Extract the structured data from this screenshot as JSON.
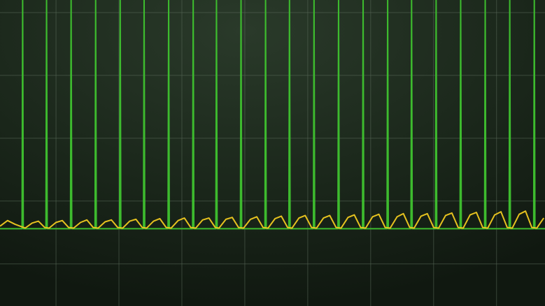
{
  "chart_data": {
    "type": "line",
    "xlim": [
      0,
      8.66
    ],
    "ylim": [
      0,
      4.87
    ],
    "xticks": [
      0.89,
      1.89,
      2.89,
      3.89,
      4.89,
      5.89,
      6.89,
      7.89
    ],
    "yticks": [
      0.67,
      1.67,
      2.67,
      3.67,
      4.67
    ],
    "grid": true,
    "series": [
      {
        "color": "#3dbb2e",
        "x": [
          0,
          0.35,
          0.36,
          0.37,
          0.73,
          0.74,
          0.75,
          1.12,
          1.13,
          1.14,
          1.51,
          1.52,
          1.53,
          1.9,
          1.91,
          1.92,
          2.28,
          2.29,
          2.3,
          2.67,
          2.68,
          2.69,
          3.06,
          3.07,
          3.08,
          3.43,
          3.44,
          3.45,
          3.82,
          3.83,
          3.84,
          4.21,
          4.22,
          4.23,
          4.59,
          4.6,
          4.61,
          4.98,
          4.99,
          5,
          5.37,
          5.38,
          5.39,
          5.76,
          5.77,
          5.78,
          6.15,
          6.16,
          6.17,
          6.53,
          6.54,
          6.55,
          6.92,
          6.93,
          6.94,
          7.31,
          7.32,
          7.33,
          7.7,
          7.71,
          7.72,
          8.09,
          8.1,
          8.11,
          8.48,
          8.49,
          8.5,
          8.66
        ],
        "values": [
          1.23,
          1.23,
          4.9,
          1.23,
          1.23,
          4.9,
          1.23,
          1.23,
          4.9,
          1.23,
          1.23,
          4.9,
          1.23,
          1.23,
          4.9,
          1.23,
          1.23,
          4.9,
          1.23,
          1.23,
          4.9,
          1.23,
          1.23,
          4.9,
          1.23,
          1.23,
          4.9,
          1.23,
          1.23,
          4.9,
          1.23,
          1.23,
          4.9,
          1.23,
          1.23,
          4.9,
          1.23,
          1.23,
          4.9,
          1.23,
          1.23,
          4.9,
          1.23,
          1.23,
          4.9,
          1.23,
          1.23,
          4.9,
          1.23,
          1.23,
          4.9,
          1.23,
          1.23,
          4.9,
          1.23,
          1.23,
          4.9,
          1.23,
          1.23,
          4.9,
          1.23,
          1.23,
          4.9,
          1.23,
          1.23,
          4.9,
          1.23,
          1.23
        ]
      },
      {
        "color": "#e6c21f",
        "x": [
          0,
          0.12,
          0.24,
          0.4,
          0.51,
          0.61,
          0.71,
          0.78,
          0.89,
          0.99,
          1.09,
          1.17,
          1.28,
          1.38,
          1.48,
          1.56,
          1.67,
          1.77,
          1.87,
          1.95,
          2.06,
          2.16,
          2.26,
          2.33,
          2.44,
          2.54,
          2.64,
          2.72,
          2.83,
          2.93,
          3.03,
          3.11,
          3.22,
          3.32,
          3.42,
          3.48,
          3.59,
          3.69,
          3.79,
          3.87,
          3.98,
          4.08,
          4.18,
          4.26,
          4.37,
          4.47,
          4.57,
          4.64,
          4.75,
          4.85,
          4.95,
          5.03,
          5.14,
          5.24,
          5.34,
          5.42,
          5.53,
          5.63,
          5.73,
          5.81,
          5.92,
          6.02,
          6.12,
          6.2,
          6.31,
          6.41,
          6.51,
          6.58,
          6.69,
          6.79,
          6.89,
          6.97,
          7.08,
          7.18,
          7.28,
          7.36,
          7.47,
          7.57,
          7.67,
          7.75,
          7.86,
          7.96,
          8.06,
          8.14,
          8.25,
          8.35,
          8.45,
          8.53,
          8.64
        ],
        "values": [
          1.27,
          1.36,
          1.3,
          1.24,
          1.32,
          1.35,
          1.25,
          1.24,
          1.33,
          1.36,
          1.25,
          1.24,
          1.33,
          1.37,
          1.25,
          1.24,
          1.34,
          1.37,
          1.25,
          1.24,
          1.35,
          1.38,
          1.25,
          1.24,
          1.35,
          1.39,
          1.25,
          1.24,
          1.36,
          1.4,
          1.25,
          1.24,
          1.37,
          1.4,
          1.25,
          1.24,
          1.38,
          1.41,
          1.25,
          1.24,
          1.38,
          1.42,
          1.25,
          1.24,
          1.39,
          1.43,
          1.25,
          1.24,
          1.4,
          1.44,
          1.25,
          1.24,
          1.4,
          1.44,
          1.25,
          1.24,
          1.41,
          1.45,
          1.25,
          1.24,
          1.42,
          1.46,
          1.25,
          1.24,
          1.42,
          1.47,
          1.25,
          1.24,
          1.43,
          1.47,
          1.25,
          1.24,
          1.44,
          1.48,
          1.25,
          1.24,
          1.45,
          1.49,
          1.25,
          1.24,
          1.45,
          1.5,
          1.25,
          1.24,
          1.46,
          1.51,
          1.25,
          1.24,
          1.4
        ]
      }
    ]
  }
}
